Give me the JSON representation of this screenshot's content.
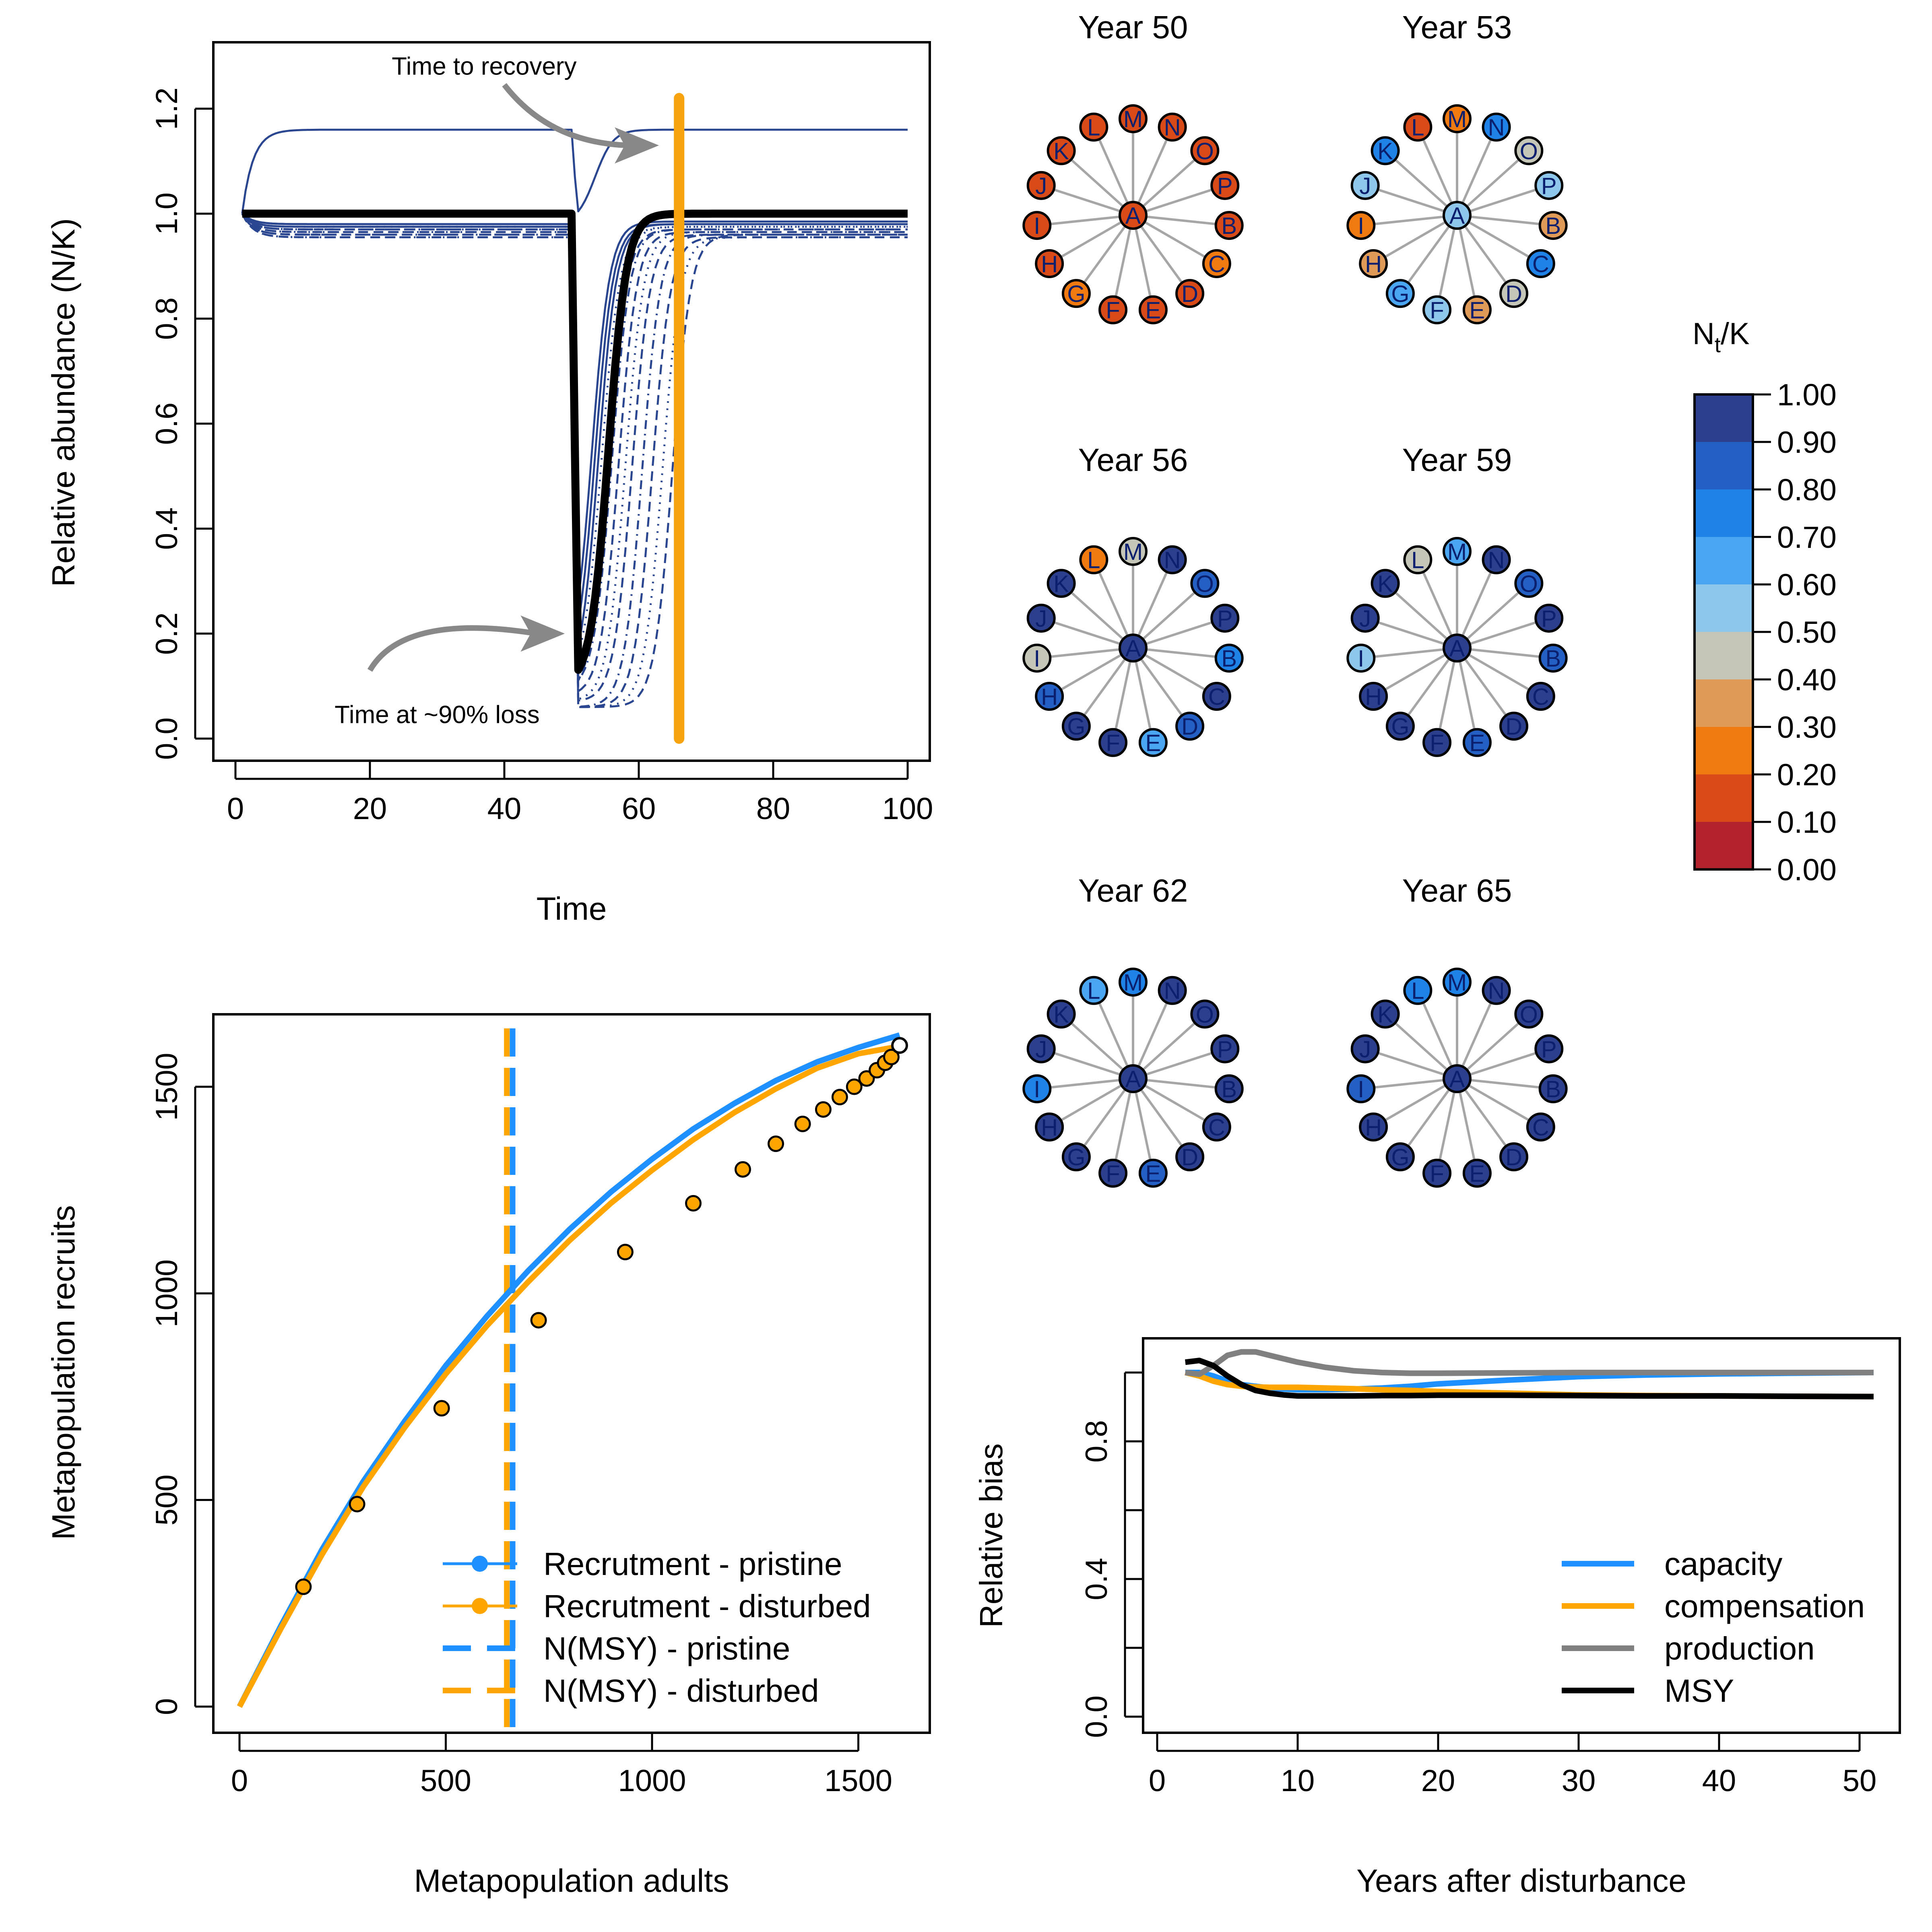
{
  "colors": {
    "thin_line": "#2a4690",
    "recovery_line": "#f7a30f",
    "mean_line": "#000000",
    "pristine": "#1e90ff",
    "disturbed": "#ffa500",
    "capacity": "#1e90ff",
    "compensation": "#ffa500",
    "production": "#808080",
    "msy": "#000000",
    "arrow": "#888888",
    "network_edge": "#a6a6a6"
  },
  "chart_data": [
    {
      "id": "abundance",
      "type": "line",
      "xlabel": "Time",
      "ylabel": "Relative abundance (N/K)",
      "xlim": [
        0,
        100
      ],
      "ylim": [
        0,
        1.2
      ],
      "xticks": [
        "0",
        "20",
        "40",
        "60",
        "80",
        "100"
      ],
      "yticks": [
        "0.0",
        "0.2",
        "0.4",
        "0.6",
        "0.8",
        "1.0",
        "1.2"
      ],
      "disturbance_time": 50,
      "min_relative_abundance": 0.1,
      "recovery_time": 66,
      "series": [
        {
          "values": {
            "pre": 1.16,
            "min": 0.98,
            "recover_mid": 53.5,
            "post": 1.16
          },
          "style": "solid"
        },
        {
          "values": {
            "pre": 0.98,
            "min": 0.1,
            "recover_mid": 53.0,
            "post": 0.985
          },
          "style": "solid"
        },
        {
          "values": {
            "pre": 0.98,
            "min": 0.1,
            "recover_mid": 53.5,
            "post": 0.98
          },
          "style": "solid"
        },
        {
          "values": {
            "pre": 0.975,
            "min": 0.09,
            "recover_mid": 54.0,
            "post": 0.98
          },
          "style": "solid"
        },
        {
          "values": {
            "pre": 0.975,
            "min": 0.1,
            "recover_mid": 54.5,
            "post": 0.975
          },
          "style": "dotted"
        },
        {
          "values": {
            "pre": 0.97,
            "min": 0.09,
            "recover_mid": 55.0,
            "post": 0.975
          },
          "style": "dotted"
        },
        {
          "values": {
            "pre": 0.97,
            "min": 0.08,
            "recover_mid": 55.5,
            "post": 0.97
          },
          "style": "dashed"
        },
        {
          "values": {
            "pre": 0.97,
            "min": 0.09,
            "recover_mid": 56.0,
            "post": 0.97
          },
          "style": "dotdash"
        },
        {
          "values": {
            "pre": 0.965,
            "min": 0.08,
            "recover_mid": 57.0,
            "post": 0.965
          },
          "style": "dashed"
        },
        {
          "values": {
            "pre": 0.965,
            "min": 0.07,
            "recover_mid": 58.0,
            "post": 0.965
          },
          "style": "dotted"
        },
        {
          "values": {
            "pre": 0.96,
            "min": 0.07,
            "recover_mid": 59.0,
            "post": 0.96
          },
          "style": "dashed"
        },
        {
          "values": {
            "pre": 0.96,
            "min": 0.06,
            "recover_mid": 60.5,
            "post": 0.96
          },
          "style": "dotdash"
        },
        {
          "values": {
            "pre": 0.955,
            "min": 0.06,
            "recover_mid": 62.0,
            "post": 0.955
          },
          "style": "dashed"
        },
        {
          "values": {
            "pre": 0.955,
            "min": 0.06,
            "recover_mid": 63.5,
            "post": 0.955
          },
          "style": "dotted"
        },
        {
          "values": {
            "pre": 0.96,
            "min": 0.06,
            "recover_mid": 65.0,
            "post": 0.96
          },
          "style": "dashed"
        }
      ],
      "mean_series": {
        "pre": 1.0,
        "min": 0.1,
        "recover_mid": 55.5,
        "post": 1.0
      },
      "annotations": [
        {
          "text": "Time to recovery",
          "x": 37,
          "y": 1.28,
          "arrow_to": [
            63,
            1.13
          ]
        },
        {
          "text": "Time at ~90% loss",
          "x": 30,
          "y": 0.045,
          "arrow_to": [
            49,
            0.2
          ]
        }
      ]
    },
    {
      "id": "stock_recruit",
      "type": "line",
      "xlabel": "Metapopulation adults",
      "ylabel": "Metapopulation recruits",
      "xlim": [
        0,
        1600
      ],
      "ylim": [
        0,
        1600
      ],
      "xticks": [
        "0",
        "500",
        "1000",
        "1500"
      ],
      "yticks": [
        "0",
        "500",
        "1000",
        "1500"
      ],
      "series": [
        {
          "name": "Recrutment - pristine",
          "x": [
            0,
            100,
            200,
            300,
            400,
            500,
            600,
            700,
            800,
            900,
            1000,
            1100,
            1200,
            1300,
            1400,
            1500,
            1600
          ],
          "values": [
            0,
            195,
            380,
            545,
            690,
            825,
            945,
            1055,
            1155,
            1245,
            1325,
            1398,
            1460,
            1515,
            1560,
            1595,
            1625
          ]
        },
        {
          "name": "Recrutment - disturbed",
          "x": [
            0,
            100,
            200,
            300,
            400,
            500,
            600,
            700,
            800,
            900,
            1000,
            1100,
            1200,
            1300,
            1400,
            1500,
            1600
          ],
          "values": [
            0,
            188,
            368,
            532,
            675,
            805,
            922,
            1028,
            1128,
            1218,
            1298,
            1372,
            1438,
            1495,
            1545,
            1580,
            1598
          ]
        },
        {
          "name": "N(MSY) - pristine",
          "x": [
            662,
            662
          ],
          "values": [
            0,
            1600
          ]
        },
        {
          "name": "N(MSY) - disturbed",
          "x": [
            648,
            648
          ],
          "values": [
            0,
            1600
          ]
        }
      ],
      "points_disturbed": [
        {
          "x": 155,
          "y": 290
        },
        {
          "x": 285,
          "y": 490
        },
        {
          "x": 490,
          "y": 722
        },
        {
          "x": 725,
          "y": 935
        },
        {
          "x": 935,
          "y": 1100
        },
        {
          "x": 1100,
          "y": 1218
        },
        {
          "x": 1220,
          "y": 1300
        },
        {
          "x": 1300,
          "y": 1362
        },
        {
          "x": 1365,
          "y": 1410
        },
        {
          "x": 1415,
          "y": 1445
        },
        {
          "x": 1455,
          "y": 1475
        },
        {
          "x": 1490,
          "y": 1500
        },
        {
          "x": 1520,
          "y": 1520
        },
        {
          "x": 1545,
          "y": 1540
        },
        {
          "x": 1565,
          "y": 1558
        },
        {
          "x": 1580,
          "y": 1572
        }
      ],
      "points_pristine": [
        {
          "x": 1600,
          "y": 1600
        }
      ],
      "legend": [
        {
          "label": "Recrutment - pristine",
          "kind": "line-point",
          "key": "pristine"
        },
        {
          "label": "Recrutment - disturbed",
          "kind": "line-point",
          "key": "disturbed"
        },
        {
          "label": "N(MSY) - pristine",
          "kind": "dash",
          "key": "pristine"
        },
        {
          "label": "N(MSY) - disturbed",
          "kind": "dash",
          "key": "disturbed"
        }
      ]
    },
    {
      "id": "relative_bias",
      "type": "line",
      "xlabel": "Years after disturbance",
      "ylabel": "Relative bias",
      "xlim": [
        0,
        51
      ],
      "ylim": [
        0,
        1.0
      ],
      "xticks": [
        "0",
        "10",
        "20",
        "30",
        "40",
        "50"
      ],
      "yticks": [
        "0.0",
        "0.4",
        "0.8"
      ],
      "x": [
        2,
        3,
        4,
        5,
        6,
        7,
        8,
        9,
        10,
        12,
        14,
        16,
        18,
        20,
        25,
        30,
        35,
        40,
        45,
        51
      ],
      "series": [
        {
          "name": "capacity",
          "key": "capacity",
          "values": [
            1.0,
            1.0,
            0.99,
            0.975,
            0.965,
            0.96,
            0.955,
            0.952,
            0.95,
            0.95,
            0.952,
            0.955,
            0.96,
            0.967,
            0.978,
            0.988,
            0.993,
            0.996,
            0.998,
            1.0
          ]
        },
        {
          "name": "compensation",
          "key": "compensation",
          "values": [
            1.0,
            0.99,
            0.975,
            0.965,
            0.96,
            0.958,
            0.957,
            0.957,
            0.957,
            0.955,
            0.953,
            0.95,
            0.948,
            0.945,
            0.94,
            0.935,
            0.933,
            0.932,
            0.931,
            0.93
          ]
        },
        {
          "name": "production",
          "key": "production",
          "values": [
            1.0,
            0.995,
            1.02,
            1.05,
            1.06,
            1.06,
            1.05,
            1.04,
            1.03,
            1.015,
            1.005,
            1.0,
            0.998,
            0.998,
            0.999,
            1.0,
            1.0,
            1.0,
            1.0,
            1.0
          ]
        },
        {
          "name": "MSY",
          "key": "msy",
          "values": [
            1.03,
            1.035,
            1.02,
            0.99,
            0.965,
            0.948,
            0.94,
            0.935,
            0.932,
            0.932,
            0.932,
            0.933,
            0.933,
            0.934,
            0.934,
            0.933,
            0.932,
            0.932,
            0.931,
            0.93
          ]
        }
      ]
    }
  ],
  "colorbar": {
    "title_main": "N",
    "title_sub": "t",
    "title_rest": "/K",
    "labels": [
      "1.00",
      "0.90",
      "0.80",
      "0.70",
      "0.60",
      "0.50",
      "0.40",
      "0.30",
      "0.20",
      "0.10",
      "0.00"
    ],
    "swatches": [
      "#2b3f8c",
      "#2460c4",
      "#1f82e6",
      "#4aa6f0",
      "#8ec7ea",
      "#c6c6b8",
      "#e09a58",
      "#f07a10",
      "#d84a18",
      "#b3232d"
    ]
  },
  "networks": {
    "center_label": "A",
    "ring_labels": [
      "M",
      "N",
      "O",
      "P",
      "B",
      "C",
      "D",
      "E",
      "F",
      "G",
      "H",
      "I",
      "J",
      "K",
      "L"
    ],
    "panels": [
      {
        "title": "Year 50",
        "center": 0.15,
        "ring": [
          0.1,
          0.12,
          0.1,
          0.15,
          0.1,
          0.2,
          0.15,
          0.1,
          0.12,
          0.2,
          0.15,
          0.18,
          0.1,
          0.15,
          0.1
        ]
      },
      {
        "title": "Year 53",
        "center": 0.55,
        "ring": [
          0.25,
          0.7,
          0.45,
          0.55,
          0.3,
          0.7,
          0.45,
          0.3,
          0.55,
          0.6,
          0.35,
          0.25,
          0.55,
          0.7,
          0.15
        ]
      },
      {
        "title": "Year 56",
        "center": 0.95,
        "ring": [
          0.45,
          0.95,
          0.8,
          0.95,
          0.7,
          0.95,
          0.8,
          0.6,
          0.9,
          0.95,
          0.8,
          0.45,
          0.95,
          0.95,
          0.25
        ]
      },
      {
        "title": "Year 59",
        "center": 0.95,
        "ring": [
          0.6,
          0.95,
          0.8,
          0.95,
          0.8,
          0.95,
          0.95,
          0.8,
          0.95,
          0.95,
          0.9,
          0.55,
          0.95,
          0.95,
          0.45
        ]
      },
      {
        "title": "Year 62",
        "center": 0.95,
        "ring": [
          0.75,
          0.95,
          0.95,
          0.95,
          0.95,
          0.95,
          0.95,
          0.8,
          0.95,
          0.95,
          0.9,
          0.75,
          0.95,
          0.95,
          0.6
        ]
      },
      {
        "title": "Year 65",
        "center": 0.95,
        "ring": [
          0.75,
          0.95,
          0.95,
          0.95,
          0.95,
          0.95,
          0.95,
          0.95,
          0.95,
          0.95,
          0.9,
          0.8,
          0.95,
          0.95,
          0.7
        ]
      }
    ]
  }
}
